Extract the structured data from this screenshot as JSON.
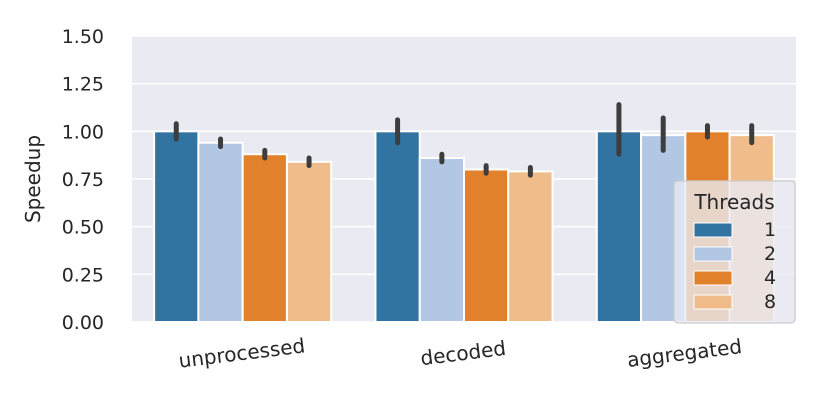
{
  "chart_data": {
    "type": "bar",
    "title": "",
    "xlabel": "",
    "ylabel": "Speedup",
    "ylim": [
      0,
      1.5
    ],
    "yticks": [
      "0.00",
      "0.25",
      "0.50",
      "0.75",
      "1.00",
      "1.25",
      "1.50"
    ],
    "ytick_values": [
      0,
      0.25,
      0.5,
      0.75,
      1.0,
      1.25,
      1.5
    ],
    "categories": [
      "unprocessed",
      "decoded",
      "aggregated"
    ],
    "grid": true,
    "legend": {
      "title": "Threads",
      "placement": "lower-right"
    },
    "series": [
      {
        "name": "1",
        "color": "#3274a1",
        "values": [
          1.0,
          1.0,
          1.0
        ],
        "err_low": [
          0.96,
          0.94,
          0.88
        ],
        "err_high": [
          1.04,
          1.06,
          1.14
        ]
      },
      {
        "name": "2",
        "color": "#b1c7e4",
        "values": [
          0.94,
          0.86,
          0.98
        ],
        "err_low": [
          0.92,
          0.84,
          0.9
        ],
        "err_high": [
          0.96,
          0.88,
          1.07
        ]
      },
      {
        "name": "4",
        "color": "#e1812c",
        "values": [
          0.88,
          0.8,
          1.0
        ],
        "err_low": [
          0.86,
          0.78,
          0.97
        ],
        "err_high": [
          0.9,
          0.82,
          1.03
        ]
      },
      {
        "name": "8",
        "color": "#f0bc8a",
        "values": [
          0.84,
          0.79,
          0.98
        ],
        "err_low": [
          0.82,
          0.77,
          0.94
        ],
        "err_high": [
          0.86,
          0.81,
          1.03
        ]
      }
    ]
  }
}
